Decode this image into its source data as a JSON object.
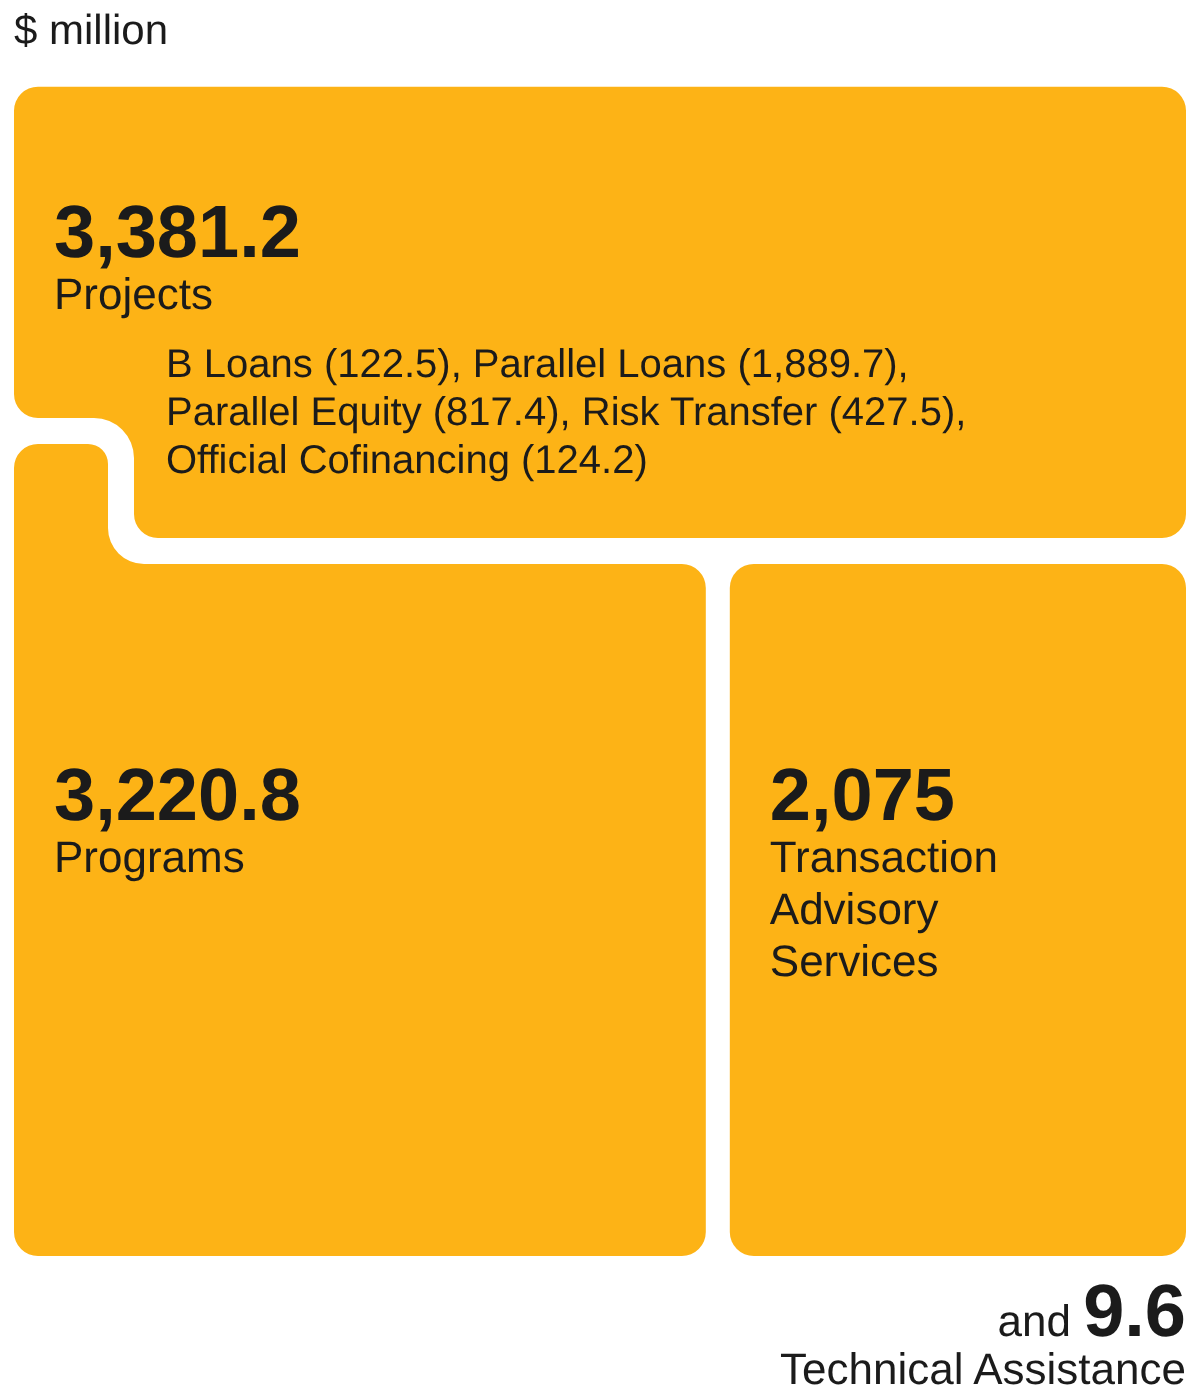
{
  "chart_data": {
    "type": "other",
    "title": "$ million",
    "categories": [
      "Projects",
      "Programs",
      "Transaction Advisory Services",
      "Technical Assistance"
    ],
    "values": [
      3381.2,
      3220.8,
      2075,
      9.6
    ],
    "value_labels": [
      "3,381.2",
      "3,220.8",
      "2,075",
      "9.6"
    ],
    "color": "#fdb316",
    "annotations": [
      "B Loans (122.5), Parallel Loans (1,889.7), Parallel Equity (817.4), Risk Transfer (427.5), Official Cofinancing (124.2)",
      "and"
    ]
  }
}
